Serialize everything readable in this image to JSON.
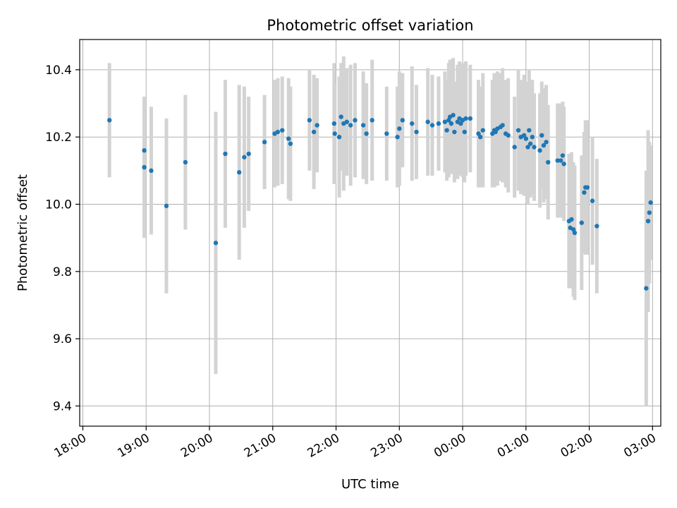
{
  "chart_data": {
    "type": "scatter",
    "title": "Photometric offset variation",
    "xlabel": "UTC time",
    "ylabel": "Photometric offset",
    "x_tick_labels": [
      "18:00",
      "19:00",
      "20:00",
      "21:00",
      "22:00",
      "23:00",
      "00:00",
      "01:00",
      "02:00",
      "03:00"
    ],
    "x_tick_hours": [
      18,
      19,
      20,
      21,
      22,
      23,
      24,
      25,
      26,
      27
    ],
    "y_ticks": [
      9.4,
      9.6,
      9.8,
      10.0,
      10.2,
      10.4
    ],
    "y_tick_labels": [
      "9.4",
      "9.6",
      "9.8",
      "10.0",
      "10.2",
      "10.4"
    ],
    "xlim_hours": [
      17.95,
      27.13
    ],
    "ylim": [
      9.34,
      10.49
    ],
    "grid": true,
    "colors": {
      "point": "#1f77b4",
      "errorbar": "#d3d3d3",
      "grid": "#b0b0b0"
    },
    "points": [
      [
        18.42,
        10.25,
        0.17
      ],
      [
        18.97,
        10.16,
        0.16
      ],
      [
        18.97,
        10.11,
        0.21
      ],
      [
        19.08,
        10.1,
        0.19
      ],
      [
        19.32,
        9.995,
        0.26
      ],
      [
        19.62,
        10.125,
        0.2
      ],
      [
        20.1,
        9.885,
        0.39
      ],
      [
        20.25,
        10.15,
        0.22
      ],
      [
        20.47,
        10.095,
        0.26
      ],
      [
        20.55,
        10.14,
        0.21
      ],
      [
        20.62,
        10.15,
        0.17
      ],
      [
        20.87,
        10.185,
        0.14
      ],
      [
        21.03,
        10.21,
        0.16
      ],
      [
        21.08,
        10.215,
        0.16
      ],
      [
        21.15,
        10.22,
        0.16
      ],
      [
        21.25,
        10.195,
        0.18
      ],
      [
        21.28,
        10.18,
        0.17
      ],
      [
        21.58,
        10.25,
        0.15
      ],
      [
        21.65,
        10.215,
        0.17
      ],
      [
        21.7,
        10.235,
        0.14
      ],
      [
        21.97,
        10.24,
        0.18
      ],
      [
        21.98,
        10.21,
        0.15
      ],
      [
        22.05,
        10.2,
        0.18
      ],
      [
        22.08,
        10.26,
        0.16
      ],
      [
        22.12,
        10.24,
        0.2
      ],
      [
        22.17,
        10.245,
        0.16
      ],
      [
        22.23,
        10.235,
        0.18
      ],
      [
        22.3,
        10.25,
        0.17
      ],
      [
        22.43,
        10.235,
        0.16
      ],
      [
        22.48,
        10.21,
        0.15
      ],
      [
        22.57,
        10.25,
        0.18
      ],
      [
        22.8,
        10.21,
        0.14
      ],
      [
        22.97,
        10.2,
        0.15
      ],
      [
        23.0,
        10.225,
        0.17
      ],
      [
        23.05,
        10.25,
        0.14
      ],
      [
        23.2,
        10.24,
        0.17
      ],
      [
        23.27,
        10.215,
        0.14
      ],
      [
        23.45,
        10.245,
        0.16
      ],
      [
        23.52,
        10.235,
        0.15
      ],
      [
        23.62,
        10.24,
        0.14
      ],
      [
        23.72,
        10.245,
        0.15
      ],
      [
        23.75,
        10.22,
        0.15
      ],
      [
        23.78,
        10.25,
        0.17
      ],
      [
        23.8,
        10.26,
        0.17
      ],
      [
        23.82,
        10.24,
        0.15
      ],
      [
        23.85,
        10.265,
        0.17
      ],
      [
        23.87,
        10.215,
        0.15
      ],
      [
        23.92,
        10.245,
        0.17
      ],
      [
        23.95,
        10.255,
        0.17
      ],
      [
        23.97,
        10.24,
        0.15
      ],
      [
        24.0,
        10.25,
        0.17
      ],
      [
        24.03,
        10.215,
        0.15
      ],
      [
        24.05,
        10.255,
        0.17
      ],
      [
        24.12,
        10.255,
        0.16
      ],
      [
        24.25,
        10.21,
        0.16
      ],
      [
        24.28,
        10.2,
        0.15
      ],
      [
        24.32,
        10.22,
        0.17
      ],
      [
        24.47,
        10.21,
        0.16
      ],
      [
        24.5,
        10.22,
        0.17
      ],
      [
        24.52,
        10.215,
        0.16
      ],
      [
        24.55,
        10.225,
        0.17
      ],
      [
        24.6,
        10.23,
        0.16
      ],
      [
        24.63,
        10.235,
        0.17
      ],
      [
        24.68,
        10.21,
        0.16
      ],
      [
        24.72,
        10.205,
        0.17
      ],
      [
        24.82,
        10.17,
        0.15
      ],
      [
        24.88,
        10.22,
        0.18
      ],
      [
        24.92,
        10.2,
        0.17
      ],
      [
        24.97,
        10.205,
        0.18
      ],
      [
        25.0,
        10.195,
        0.17
      ],
      [
        25.03,
        10.17,
        0.17
      ],
      [
        25.05,
        10.22,
        0.18
      ],
      [
        25.07,
        10.18,
        0.16
      ],
      [
        25.1,
        10.2,
        0.17
      ],
      [
        25.13,
        10.17,
        0.16
      ],
      [
        25.22,
        10.16,
        0.17
      ],
      [
        25.25,
        10.205,
        0.16
      ],
      [
        25.28,
        10.175,
        0.17
      ],
      [
        25.32,
        10.185,
        0.17
      ],
      [
        25.35,
        10.125,
        0.17
      ],
      [
        25.5,
        10.13,
        0.17
      ],
      [
        25.55,
        10.13,
        0.17
      ],
      [
        25.58,
        10.145,
        0.16
      ],
      [
        25.6,
        10.12,
        0.17
      ],
      [
        25.68,
        9.95,
        0.2
      ],
      [
        25.7,
        9.93,
        0.18
      ],
      [
        25.72,
        9.955,
        0.2
      ],
      [
        25.75,
        9.925,
        0.2
      ],
      [
        25.77,
        9.915,
        0.2
      ],
      [
        25.88,
        9.945,
        0.2
      ],
      [
        25.92,
        10.035,
        0.18
      ],
      [
        25.94,
        10.05,
        0.2
      ],
      [
        25.97,
        10.05,
        0.2
      ],
      [
        26.05,
        10.01,
        0.19
      ],
      [
        26.12,
        9.935,
        0.2
      ],
      [
        26.9,
        9.75,
        0.35
      ],
      [
        26.93,
        9.95,
        0.27
      ],
      [
        26.95,
        9.975,
        0.21
      ],
      [
        26.97,
        10.005,
        0.17
      ]
    ]
  }
}
